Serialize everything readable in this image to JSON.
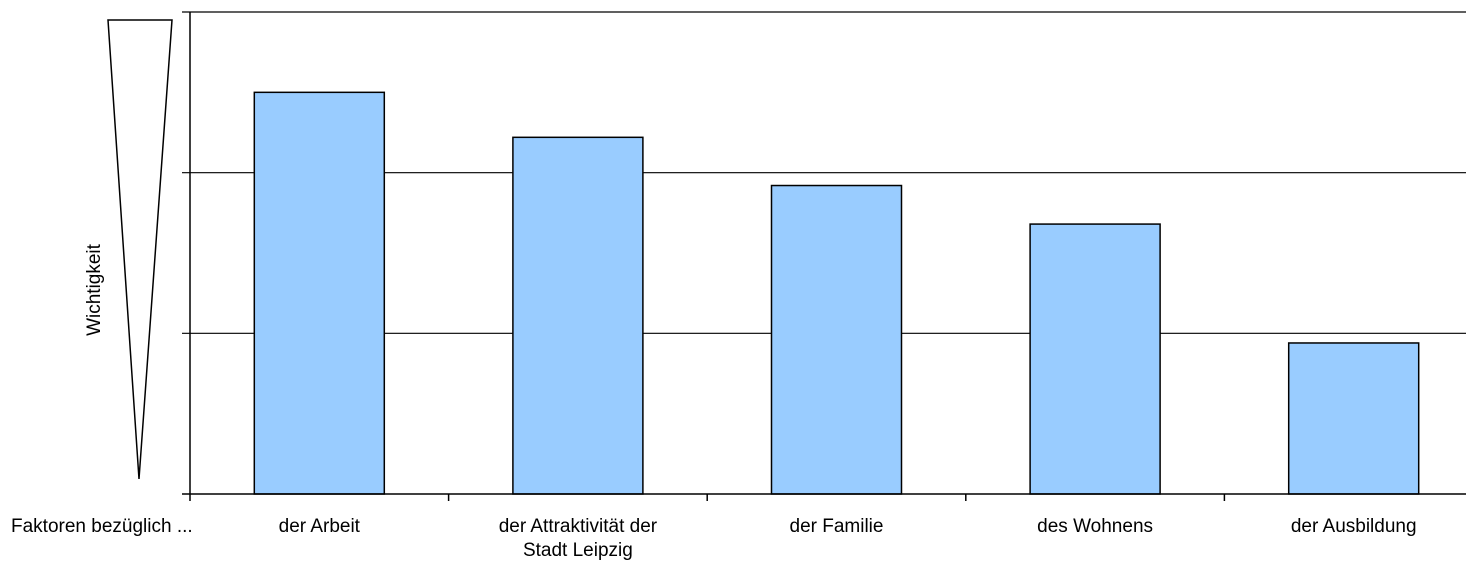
{
  "chart_data": {
    "type": "bar",
    "ylabel": "Wichtigkeit",
    "x_prefix_label": "Faktoren bezüglich ...",
    "categories": [
      [
        "der Arbeit"
      ],
      [
        "der Attraktivität der",
        "Stadt Leipzig"
      ],
      [
        "der Familie"
      ],
      [
        "des Wohnens"
      ],
      [
        "der Ausbildung"
      ]
    ],
    "values": [
      2.5,
      2.22,
      1.92,
      1.68,
      0.94
    ],
    "ylim": [
      0,
      3
    ],
    "y_gridlines": [
      1,
      2,
      3
    ],
    "y_tick_labels_shown": false,
    "grid": true,
    "legend": "none",
    "bar_color": "#99ccff",
    "bar_stroke": "#000000",
    "importance_indicator": "downward-tapering-triangle"
  }
}
